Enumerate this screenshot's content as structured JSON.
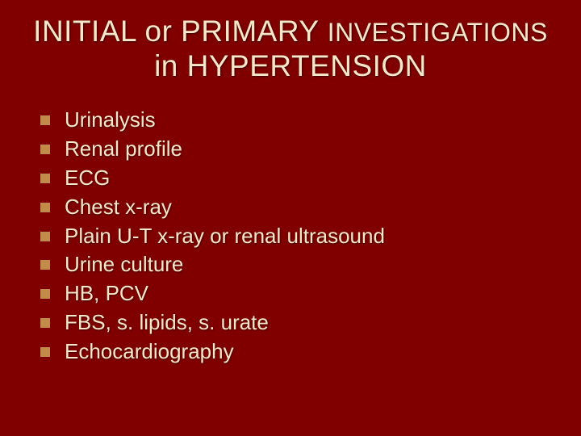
{
  "slide": {
    "background_color": "#800000",
    "text_color": "#f5e7c8",
    "bullet_marker_color": "#c28b4a",
    "title_line1_a": "INITIAL or PRIMARY ",
    "title_line1_b": "INVESTIGATIONS",
    "title_line2": "in HYPERTENSION",
    "title_fontsize_main": 37,
    "title_fontsize_small": 32,
    "body_fontsize": 26,
    "items": [
      "Urinalysis",
      "Renal profile",
      "ECG",
      "Chest x-ray",
      "Plain U-T x-ray or renal ultrasound",
      "Urine culture",
      "HB, PCV",
      "FBS, s. lipids, s. urate",
      "Echocardiography"
    ]
  }
}
